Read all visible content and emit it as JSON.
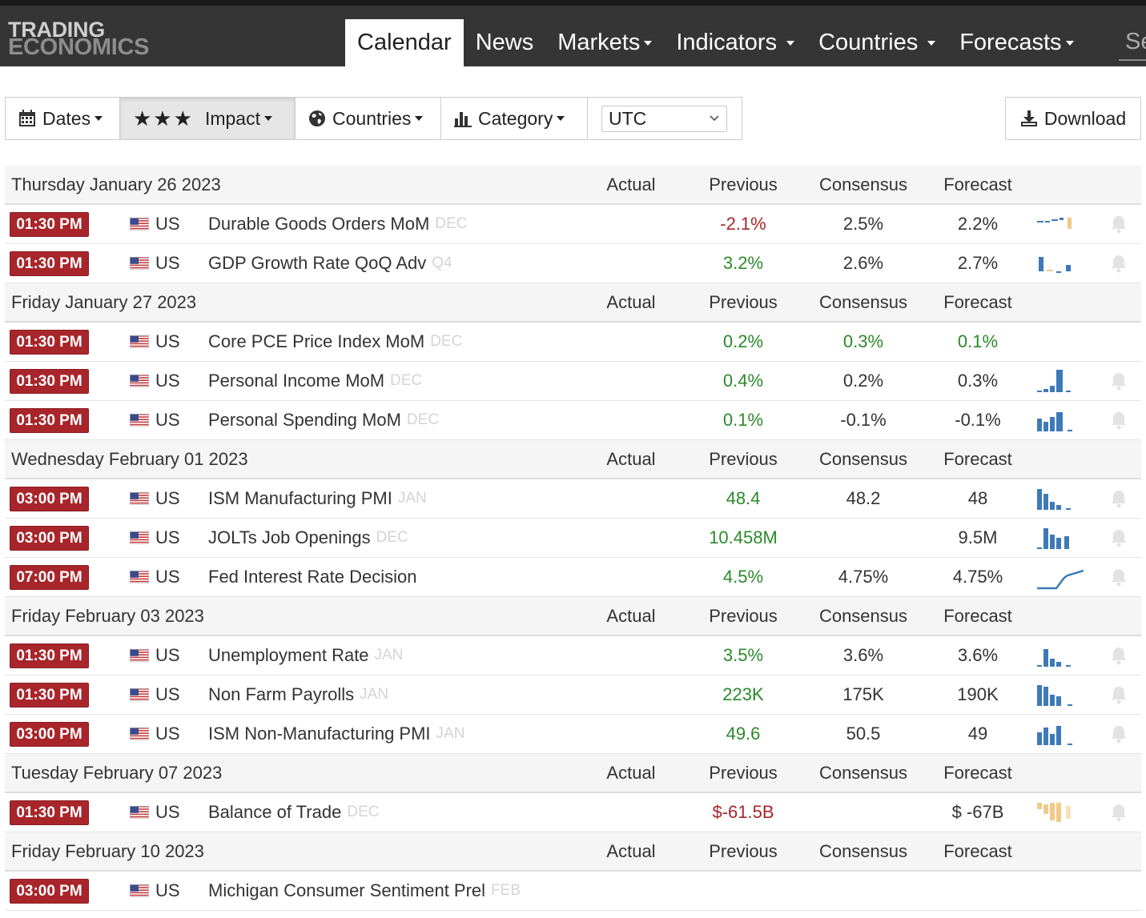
{
  "logo": {
    "line1": "TRADING",
    "line2": "ECONOMICS"
  },
  "nav": {
    "items": [
      {
        "label": "Calendar",
        "active": true,
        "dropdown": false
      },
      {
        "label": "News",
        "active": false,
        "dropdown": false
      },
      {
        "label": "Markets",
        "active": false,
        "dropdown": true
      },
      {
        "label": "Indicators",
        "active": false,
        "dropdown": true
      },
      {
        "label": "Countries",
        "active": false,
        "dropdown": true
      },
      {
        "label": "Forecasts",
        "active": false,
        "dropdown": true
      }
    ],
    "search_stub": "Se"
  },
  "filters": {
    "dates": "Dates",
    "impact_stars": "★★★",
    "impact": "Impact",
    "countries": "Countries",
    "category": "Category",
    "timezone": "UTC"
  },
  "download": "Download",
  "colors": {
    "time_badge": "#a8262b",
    "negative": "#a8262b",
    "positive": "#2a8a2a",
    "spark_blue": "#3d7ab8",
    "spark_orange": "#f2c987"
  },
  "calendar": {
    "columns": {
      "actual": "Actual",
      "previous": "Previous",
      "consensus": "Consensus",
      "forecast": "Forecast"
    },
    "days": [
      {
        "date": "Thursday January 26 2023",
        "events": [
          {
            "time": "01:30 PM",
            "country": "US",
            "event": "Durable Goods Orders MoM",
            "ref": "DEC",
            "actual": "",
            "previous": "-2.1%",
            "previous_color": "red",
            "consensus": "2.5%",
            "consensus_color": "plain",
            "forecast": "2.2%",
            "forecast_color": "plain",
            "spark": "mixed-small",
            "bell": true
          },
          {
            "time": "01:30 PM",
            "country": "US",
            "event": "GDP Growth Rate QoQ Adv",
            "ref": "Q4",
            "actual": "",
            "previous": "3.2%",
            "previous_color": "green",
            "consensus": "2.6%",
            "consensus_color": "plain",
            "forecast": "2.7%",
            "forecast_color": "plain",
            "spark": "gdp",
            "bell": true
          }
        ]
      },
      {
        "date": "Friday January 27 2023",
        "events": [
          {
            "time": "01:30 PM",
            "country": "US",
            "event": "Core PCE Price Index MoM",
            "ref": "DEC",
            "actual": "",
            "previous": "0.2%",
            "previous_color": "green",
            "consensus": "0.3%",
            "consensus_color": "green",
            "forecast": "0.1%",
            "forecast_color": "green",
            "spark": "none",
            "bell": false
          },
          {
            "time": "01:30 PM",
            "country": "US",
            "event": "Personal Income MoM",
            "ref": "DEC",
            "actual": "",
            "previous": "0.4%",
            "previous_color": "green",
            "consensus": "0.2%",
            "consensus_color": "plain",
            "forecast": "0.3%",
            "forecast_color": "plain",
            "spark": "income",
            "bell": true
          },
          {
            "time": "01:30 PM",
            "country": "US",
            "event": "Personal Spending MoM",
            "ref": "DEC",
            "actual": "",
            "previous": "0.1%",
            "previous_color": "green",
            "consensus": "-0.1%",
            "consensus_color": "plain",
            "forecast": "-0.1%",
            "forecast_color": "plain",
            "spark": "spending",
            "bell": true
          }
        ]
      },
      {
        "date": "Wednesday February 01 2023",
        "events": [
          {
            "time": "03:00 PM",
            "country": "US",
            "event": "ISM Manufacturing PMI",
            "ref": "JAN",
            "actual": "",
            "previous": "48.4",
            "previous_color": "green",
            "consensus": "48.2",
            "consensus_color": "plain",
            "forecast": "48",
            "forecast_color": "plain",
            "spark": "pmi",
            "bell": true
          },
          {
            "time": "03:00 PM",
            "country": "US",
            "event": "JOLTs Job Openings",
            "ref": "DEC",
            "actual": "",
            "previous": "10.458M",
            "previous_color": "green",
            "consensus": "",
            "consensus_color": "plain",
            "forecast": "9.5M",
            "forecast_color": "plain",
            "spark": "jolts",
            "bell": true
          },
          {
            "time": "07:00 PM",
            "country": "US",
            "event": "Fed Interest Rate Decision",
            "ref": "",
            "actual": "",
            "previous": "4.5%",
            "previous_color": "green",
            "consensus": "4.75%",
            "consensus_color": "plain",
            "forecast": "4.75%",
            "forecast_color": "plain",
            "spark": "line",
            "bell": true
          }
        ]
      },
      {
        "date": "Friday February 03 2023",
        "events": [
          {
            "time": "01:30 PM",
            "country": "US",
            "event": "Unemployment Rate",
            "ref": "JAN",
            "actual": "",
            "previous": "3.5%",
            "previous_color": "green",
            "consensus": "3.6%",
            "consensus_color": "plain",
            "forecast": "3.6%",
            "forecast_color": "plain",
            "spark": "unemp",
            "bell": true
          },
          {
            "time": "01:30 PM",
            "country": "US",
            "event": "Non Farm Payrolls",
            "ref": "JAN",
            "actual": "",
            "previous": "223K",
            "previous_color": "green",
            "consensus": "175K",
            "consensus_color": "plain",
            "forecast": "190K",
            "forecast_color": "plain",
            "spark": "nfp",
            "bell": true
          },
          {
            "time": "03:00 PM",
            "country": "US",
            "event": "ISM Non-Manufacturing PMI",
            "ref": "JAN",
            "actual": "",
            "previous": "49.6",
            "previous_color": "green",
            "consensus": "50.5",
            "consensus_color": "plain",
            "forecast": "49",
            "forecast_color": "plain",
            "spark": "nonmfg",
            "bell": true
          }
        ]
      },
      {
        "date": "Tuesday February 07 2023",
        "events": [
          {
            "time": "01:30 PM",
            "country": "US",
            "event": "Balance of Trade",
            "ref": "DEC",
            "actual": "",
            "previous": "$-61.5B",
            "previous_color": "red",
            "consensus": "",
            "consensus_color": "plain",
            "forecast": "$ -67B",
            "forecast_color": "plain",
            "spark": "trade",
            "bell": true
          }
        ]
      },
      {
        "date": "Friday February 10 2023",
        "events": [
          {
            "time": "03:00 PM",
            "country": "US",
            "event": "Michigan Consumer Sentiment Prel",
            "ref": "FEB",
            "actual": "",
            "previous": "",
            "previous_color": "plain",
            "consensus": "",
            "consensus_color": "plain",
            "forecast": "",
            "forecast_color": "plain",
            "spark": "none",
            "bell": false
          }
        ]
      }
    ]
  }
}
